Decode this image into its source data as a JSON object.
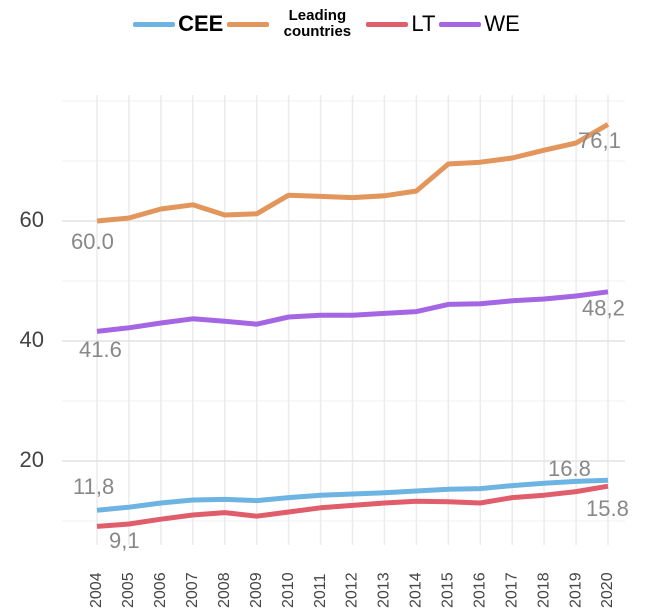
{
  "chart_data": {
    "type": "line",
    "categories": [
      "2004",
      "2005",
      "2006",
      "2007",
      "2008",
      "2009",
      "2010",
      "2011",
      "2012",
      "2013",
      "2014",
      "2015",
      "2016",
      "2017",
      "2018",
      "2019",
      "2020"
    ],
    "series": [
      {
        "name": "CEE",
        "color": "#6db4e3",
        "values": [
          11.8,
          12.3,
          13,
          13.5,
          13.6,
          13.4,
          13.9,
          14.3,
          14.5,
          14.7,
          15,
          15.3,
          15.4,
          15.9,
          16.3,
          16.6,
          16.8
        ],
        "value_labels": [
          "11,8",
          null,
          null,
          null,
          null,
          null,
          null,
          null,
          null,
          null,
          null,
          null,
          null,
          null,
          null,
          null,
          "16.8"
        ]
      },
      {
        "name": "Leading countries",
        "color": "#e2965c",
        "values": [
          60.0,
          60.5,
          62,
          62.7,
          61,
          61.2,
          64.3,
          64.1,
          63.9,
          64.2,
          65,
          69.5,
          69.8,
          70.5,
          71.8,
          73,
          76.1
        ],
        "value_labels": [
          "60.0",
          null,
          null,
          null,
          null,
          null,
          null,
          null,
          null,
          null,
          null,
          null,
          null,
          null,
          null,
          null,
          "76,1"
        ]
      },
      {
        "name": "LT",
        "color": "#e05d6c",
        "values": [
          9.1,
          9.5,
          10.3,
          11,
          11.4,
          10.8,
          11.5,
          12.2,
          12.6,
          13,
          13.3,
          13.2,
          13,
          13.9,
          14.3,
          14.9,
          15.8
        ],
        "value_labels": [
          "9,1",
          null,
          null,
          null,
          null,
          null,
          null,
          null,
          null,
          null,
          null,
          null,
          null,
          null,
          null,
          null,
          "15.8"
        ]
      },
      {
        "name": "WE",
        "color": "#a566e3",
        "values": [
          41.6,
          42.2,
          43,
          43.7,
          43.3,
          42.8,
          44,
          44.3,
          44.3,
          44.6,
          44.9,
          46.1,
          46.2,
          46.7,
          47,
          47.5,
          48.2
        ],
        "value_labels": [
          "41.6",
          null,
          null,
          null,
          null,
          null,
          null,
          null,
          null,
          null,
          null,
          null,
          null,
          null,
          null,
          null,
          "48,2"
        ]
      }
    ],
    "ylim": [
      6,
      81
    ],
    "yticks": [
      20,
      40,
      60
    ],
    "minor_yticks": [
      10,
      30,
      50,
      70,
      80
    ],
    "grid": true
  }
}
